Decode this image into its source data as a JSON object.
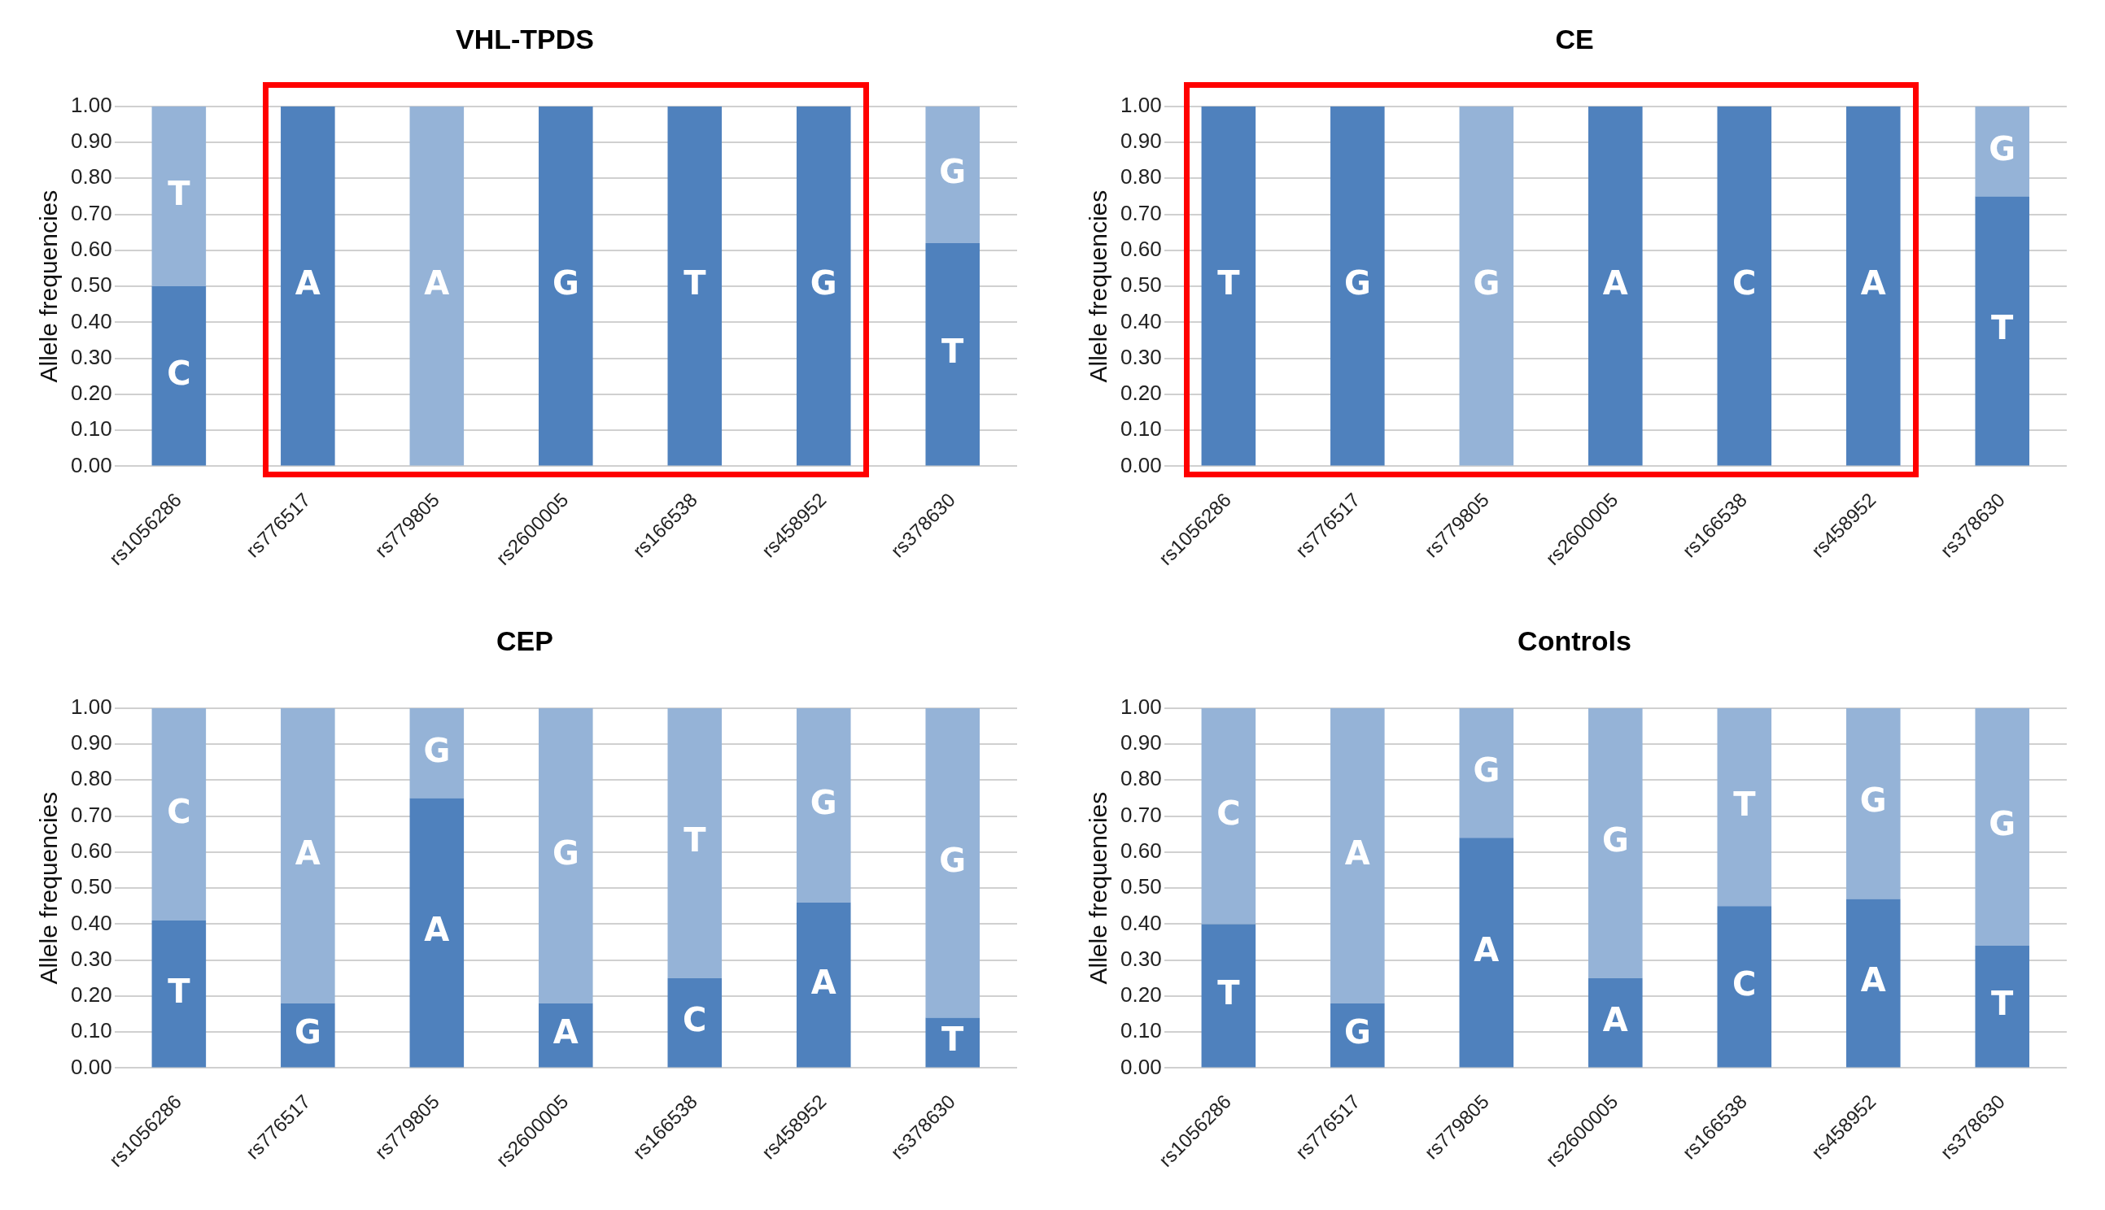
{
  "chart_data": [
    {
      "type": "bar",
      "title": "VHL-TPDS",
      "ylabel": "Allele frequencies",
      "stacked": true,
      "grid": "y",
      "categories": [
        "rs1056286",
        "rs776517",
        "rs779805",
        "rs2600005",
        "rs166538",
        "rs458952",
        "rs378630"
      ],
      "series": [
        {
          "color": "#4f81bd",
          "values": [
            0.5,
            1,
            0,
            1,
            1,
            1,
            0.62
          ],
          "value_labels": [
            "C",
            "A",
            null,
            "G",
            "T",
            "G",
            "T"
          ]
        },
        {
          "color": "#95b3d7",
          "values": [
            0.5,
            0,
            1,
            0,
            0,
            0,
            0.38
          ],
          "value_labels": [
            "T",
            null,
            "A",
            null,
            null,
            null,
            "G"
          ]
        }
      ],
      "ylim": [
        0,
        1
      ],
      "yticks": [
        {
          "value": 0,
          "label": "0.00"
        },
        {
          "value": 0.1,
          "label": "0.10"
        },
        {
          "value": 0.2,
          "label": "0.20"
        },
        {
          "value": 0.3,
          "label": "0.30"
        },
        {
          "value": 0.4,
          "label": "0.40"
        },
        {
          "value": 0.5,
          "label": "0.50"
        },
        {
          "value": 0.6,
          "label": "0.60"
        },
        {
          "value": 0.7,
          "label": "0.70"
        },
        {
          "value": 0.8,
          "label": "0.80"
        },
        {
          "value": 0.9,
          "label": "0.90"
        },
        {
          "value": 1,
          "label": "1.00"
        }
      ]
    },
    {
      "type": "bar",
      "title": "CE",
      "ylabel": "Allele frequencies",
      "stacked": true,
      "grid": "y",
      "categories": [
        "rs1056286",
        "rs776517",
        "rs779805",
        "rs2600005",
        "rs166538",
        "rs458952",
        "rs378630"
      ],
      "series": [
        {
          "color": "#4f81bd",
          "values": [
            1,
            1,
            0,
            1,
            1,
            1,
            0.75
          ],
          "value_labels": [
            "T",
            "G",
            null,
            "A",
            "C",
            "A",
            "T"
          ]
        },
        {
          "color": "#95b3d7",
          "values": [
            0,
            0,
            1,
            0,
            0,
            0,
            0.25
          ],
          "value_labels": [
            null,
            null,
            "G",
            null,
            null,
            null,
            "G"
          ]
        }
      ],
      "ylim": [
        0,
        1
      ],
      "yticks": [
        {
          "value": 0,
          "label": "0.00"
        },
        {
          "value": 0.1,
          "label": "0.10"
        },
        {
          "value": 0.2,
          "label": "0.20"
        },
        {
          "value": 0.3,
          "label": "0.30"
        },
        {
          "value": 0.4,
          "label": "0.40"
        },
        {
          "value": 0.5,
          "label": "0.50"
        },
        {
          "value": 0.6,
          "label": "0.60"
        },
        {
          "value": 0.7,
          "label": "0.70"
        },
        {
          "value": 0.8,
          "label": "0.80"
        },
        {
          "value": 0.9,
          "label": "0.90"
        },
        {
          "value": 1,
          "label": "1.00"
        }
      ]
    },
    {
      "type": "bar",
      "title": "CEP",
      "ylabel": "Allele frequencies",
      "stacked": true,
      "grid": "y",
      "categories": [
        "rs1056286",
        "rs776517",
        "rs779805",
        "rs2600005",
        "rs166538",
        "rs458952",
        "rs378630"
      ],
      "series": [
        {
          "color": "#4f81bd",
          "values": [
            0.41,
            0.18,
            0.75,
            0.18,
            0.25,
            0.46,
            0.14
          ],
          "value_labels": [
            "T",
            "G",
            "A",
            "A",
            "C",
            "A",
            "T"
          ]
        },
        {
          "color": "#95b3d7",
          "values": [
            0.59,
            0.82,
            0.25,
            0.82,
            0.75,
            0.54,
            0.86
          ],
          "value_labels": [
            "C",
            "A",
            "G",
            "G",
            "T",
            "G",
            "G"
          ]
        }
      ],
      "ylim": [
        0,
        1
      ],
      "yticks": [
        {
          "value": 0,
          "label": "0.00"
        },
        {
          "value": 0.1,
          "label": "0.10"
        },
        {
          "value": 0.2,
          "label": "0.20"
        },
        {
          "value": 0.3,
          "label": "0.30"
        },
        {
          "value": 0.4,
          "label": "0.40"
        },
        {
          "value": 0.5,
          "label": "0.50"
        },
        {
          "value": 0.6,
          "label": "0.60"
        },
        {
          "value": 0.7,
          "label": "0.70"
        },
        {
          "value": 0.8,
          "label": "0.80"
        },
        {
          "value": 0.9,
          "label": "0.90"
        },
        {
          "value": 1,
          "label": "1.00"
        }
      ]
    },
    {
      "type": "bar",
      "title": "Controls",
      "ylabel": "Allele frequencies",
      "stacked": true,
      "grid": "y",
      "categories": [
        "rs1056286",
        "rs776517",
        "rs779805",
        "rs2600005",
        "rs166538",
        "rs458952",
        "rs378630"
      ],
      "series": [
        {
          "color": "#4f81bd",
          "values": [
            0.4,
            0.18,
            0.64,
            0.25,
            0.45,
            0.47,
            0.34
          ],
          "value_labels": [
            "T",
            "G",
            "A",
            "A",
            "C",
            "A",
            "T"
          ]
        },
        {
          "color": "#95b3d7",
          "values": [
            0.6,
            0.82,
            0.36,
            0.75,
            0.55,
            0.53,
            0.66
          ],
          "value_labels": [
            "C",
            "A",
            "G",
            "G",
            "T",
            "G",
            "G"
          ]
        }
      ],
      "ylim": [
        0,
        1
      ],
      "yticks": [
        {
          "value": 0,
          "label": "0.00"
        },
        {
          "value": 0.1,
          "label": "0.10"
        },
        {
          "value": 0.2,
          "label": "0.20"
        },
        {
          "value": 0.3,
          "label": "0.30"
        },
        {
          "value": 0.4,
          "label": "0.40"
        },
        {
          "value": 0.5,
          "label": "0.50"
        },
        {
          "value": 0.6,
          "label": "0.60"
        },
        {
          "value": 0.7,
          "label": "0.70"
        },
        {
          "value": 0.8,
          "label": "0.80"
        },
        {
          "value": 0.9,
          "label": "0.90"
        },
        {
          "value": 1,
          "label": "1.00"
        }
      ]
    }
  ]
}
